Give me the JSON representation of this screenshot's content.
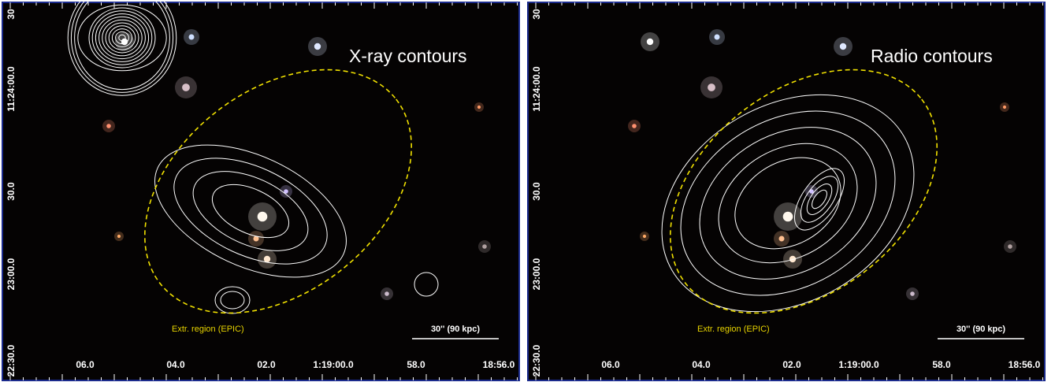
{
  "panels": [
    {
      "title": "X-ray contours",
      "region_label": "Extr. region (EPIC)",
      "scale_label": "30'' (90 kpc)",
      "x_tick_labels": [
        "06.0",
        "04.0",
        "02.0",
        "1:19:00.0",
        "58.0",
        "18:56.0"
      ],
      "y_tick_labels": [
        "30",
        "11:24:00.0",
        "30.0",
        "23:00.0",
        "22:30.0"
      ]
    },
    {
      "title": "Radio contours",
      "region_label": "Extr. region (EPIC)",
      "scale_label": "30'' (90 kpc)",
      "x_tick_labels": [
        "06.0",
        "04.0",
        "02.0",
        "1:19:00.0",
        "58.0",
        "18:56.0"
      ],
      "y_tick_labels": [
        "30",
        "11:24:00.0",
        "30.0",
        "23:00.0",
        "22:30.0"
      ]
    }
  ]
}
